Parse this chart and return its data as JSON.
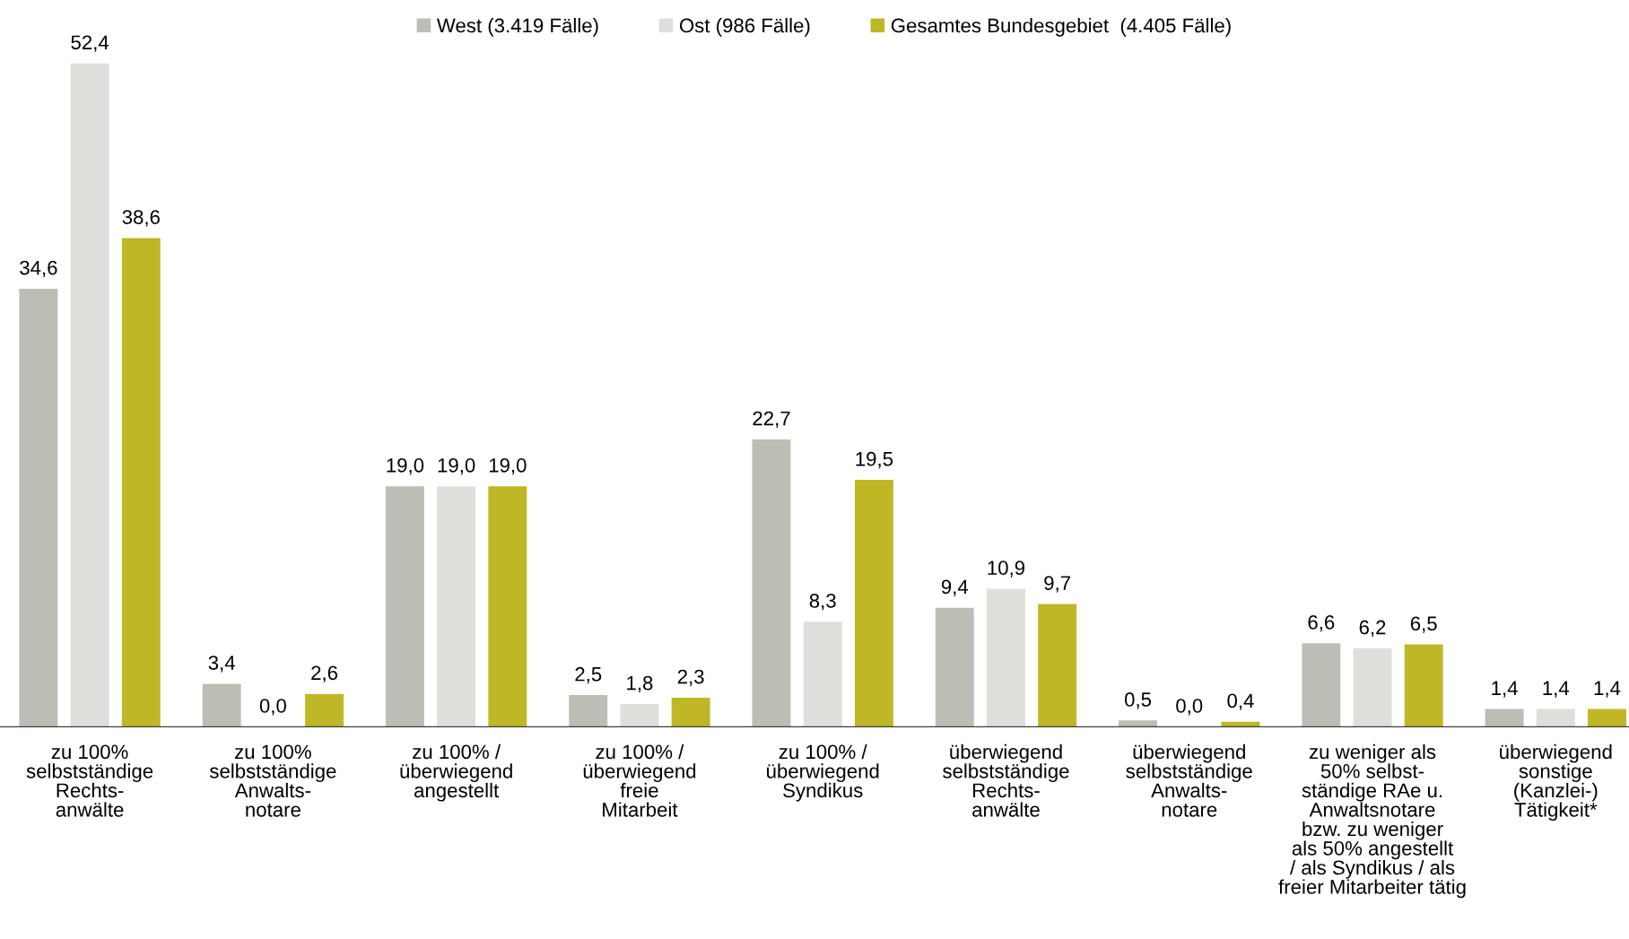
{
  "chart_data": {
    "type": "bar",
    "categories": [
      "zu 100%\nselbstständige\nRechts-\nanwälte",
      "zu 100%\nselbstständige\nAnwalts-\nnotare",
      "zu 100% /\nüberwiegend\nangestellt",
      "zu 100% /\nüberwiegend\nfreie\nMitarbeit",
      "zu 100% /\nüberwiegend\nSyndikus",
      "überwiegend\nselbstständige\nRechts-\nanwälte",
      "überwiegend\nselbstständige\nAnwalts-\nnotare",
      "zu weniger als\n50% selbst-\nständige RAe u.\nAnwaltsnotare\nbzw. zu weniger\nals 50% angestellt\n/ als Syndikus / als\nfreier Mitarbeiter tätig",
      "überwiegend\nsonstige\n(Kanzlei-)\nTätigkeit*"
    ],
    "series": [
      {
        "name": "West (3.419 Fälle)",
        "color": "#bdbdb5",
        "values": [
          34.6,
          3.4,
          19.0,
          2.5,
          22.7,
          9.4,
          0.5,
          6.6,
          1.4
        ],
        "value_labels": [
          "34,6",
          "3,4",
          "19,0",
          "2,5",
          "22,7",
          "9,4",
          "0,5",
          "6,6",
          "1,4"
        ]
      },
      {
        "name": "Ost (986 Fälle)",
        "color": "#dededa",
        "values": [
          52.4,
          0.0,
          19.0,
          1.8,
          8.3,
          10.9,
          0.0,
          6.2,
          1.4
        ],
        "value_labels": [
          "52,4",
          "0,0",
          "19,0",
          "1,8",
          "8,3",
          "10,9",
          "0,0",
          "6,2",
          "1,4"
        ]
      },
      {
        "name": "Gesamtes Bundesgebiet  (4.405 Fälle)",
        "color": "#bfb725",
        "values": [
          38.6,
          2.6,
          19.0,
          2.3,
          19.5,
          9.7,
          0.4,
          6.5,
          1.4
        ],
        "value_labels": [
          "38,6",
          "2,6",
          "19,0",
          "2,3",
          "19,5",
          "9,7",
          "0,4",
          "6,5",
          "1,4"
        ]
      }
    ],
    "legend": "top",
    "grid": false
  }
}
